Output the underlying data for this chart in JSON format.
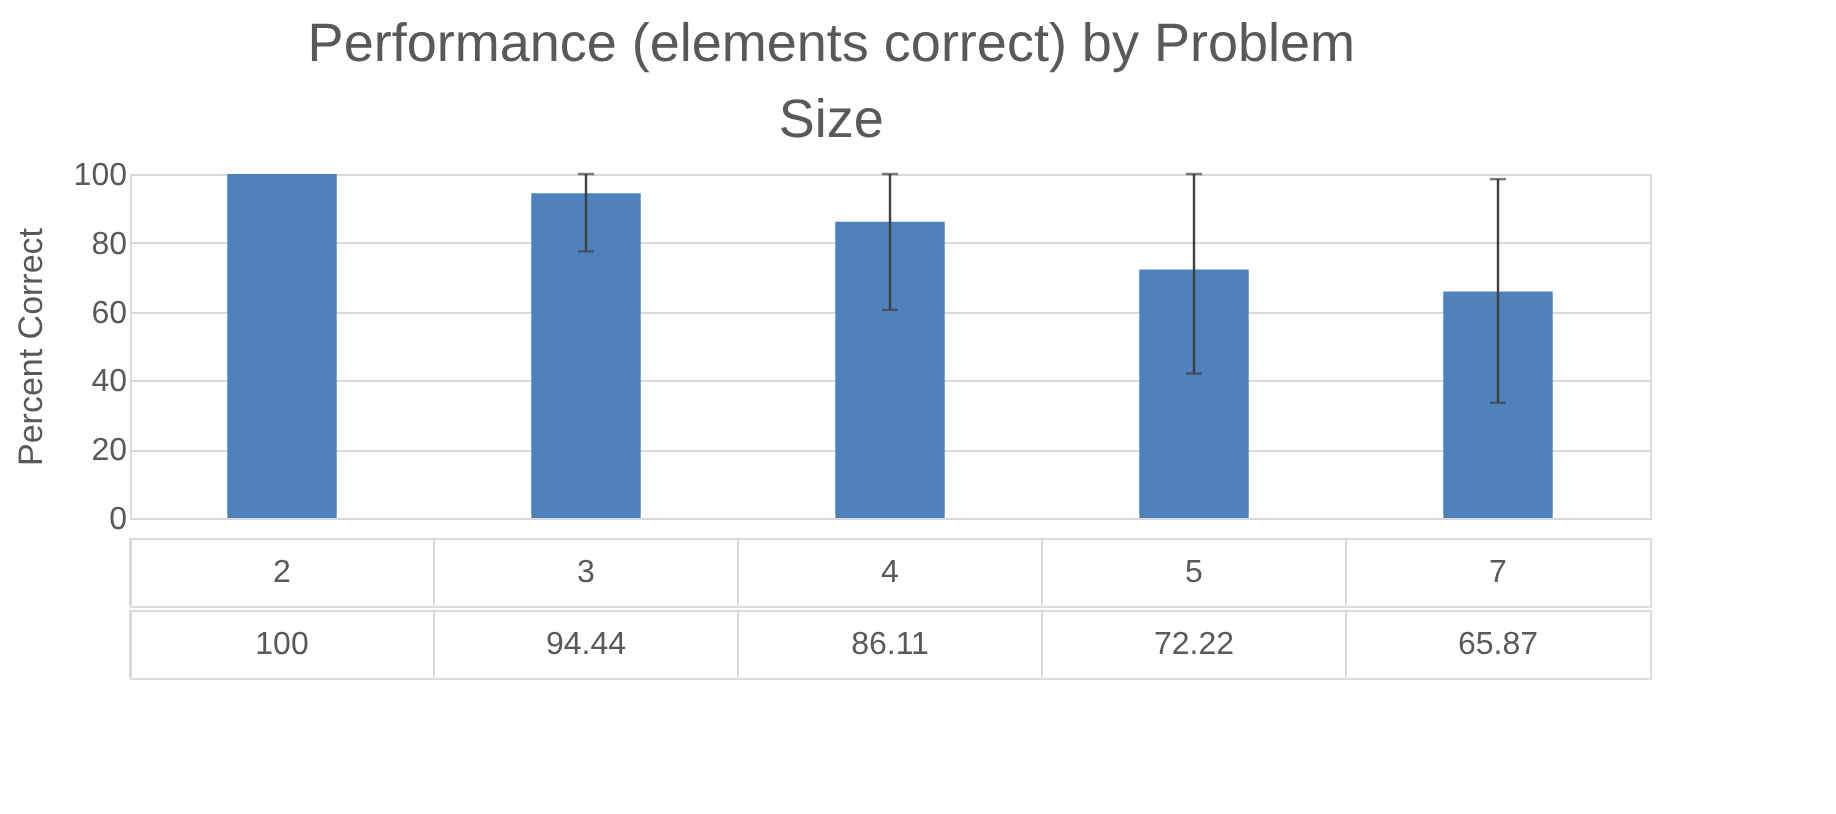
{
  "chart_data": {
    "type": "bar",
    "title": "Performance (elements correct) by Problem Size",
    "ylabel": "Percent Correct",
    "categories": [
      "2",
      "3",
      "4",
      "5",
      "7"
    ],
    "values": [
      100,
      94.44,
      86.11,
      72.22,
      65.87
    ],
    "errors": [
      null,
      [
        77.5,
        100
      ],
      [
        60.5,
        100
      ],
      [
        42,
        100
      ],
      [
        33.5,
        98.5
      ]
    ],
    "color": "#4f81bd",
    "ylim": [
      0,
      100
    ],
    "yticks": [
      0,
      20,
      40,
      60,
      80,
      100
    ],
    "grid": "y",
    "data_labels": true
  }
}
